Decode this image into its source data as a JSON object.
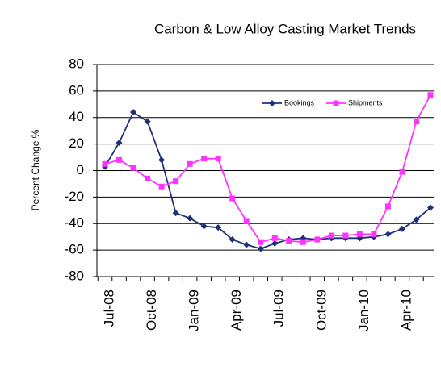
{
  "chart_data": {
    "type": "line",
    "title": "Carbon & Low Alloy Casting Market Trends",
    "y_label": "Percent Change %",
    "categories": [
      "Jul-08",
      null,
      null,
      "Oct-08",
      null,
      null,
      "Jan-09",
      null,
      null,
      "Apr-09",
      null,
      null,
      "Jul-09",
      null,
      null,
      "Oct-09",
      null,
      null,
      "Jan-10",
      null,
      null,
      "Apr-10",
      null,
      null
    ],
    "series": [
      {
        "name": "Bookings",
        "color": "#1f2f7a",
        "marker": "diamond",
        "values": [
          3,
          21,
          44,
          37,
          8,
          -32,
          -36,
          -42,
          -43,
          -52,
          -56,
          -59,
          -55,
          -52,
          -51,
          -52,
          -51,
          -51,
          -51,
          -50,
          -48,
          -44,
          -37,
          -28
        ]
      },
      {
        "name": "Shipments",
        "color": "#ff33ff",
        "marker": "square",
        "values": [
          5,
          8,
          2,
          -6,
          -12,
          -8,
          5,
          9,
          9,
          -21,
          -38,
          -54,
          -51,
          -53,
          -54,
          -52,
          -49,
          -49,
          -48,
          -48,
          -27,
          -1,
          37,
          57
        ]
      }
    ],
    "ylim": [
      -80,
      80
    ],
    "yticks": [
      -80,
      -60,
      -40,
      -20,
      0,
      20,
      40,
      60,
      80
    ],
    "grid": true
  }
}
